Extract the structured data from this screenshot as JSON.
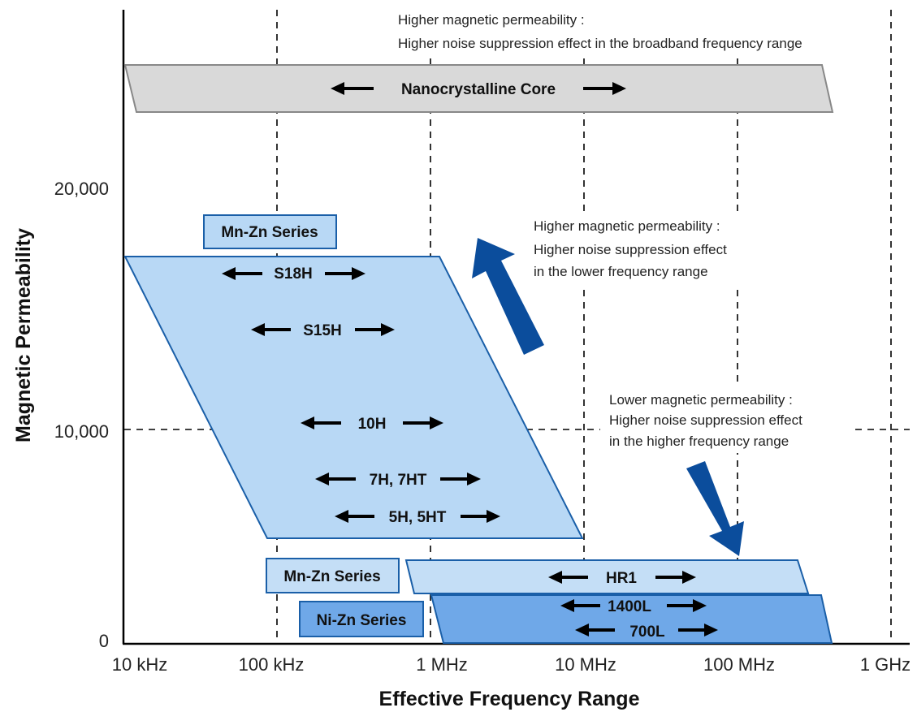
{
  "axes": {
    "x_title": "Effective Frequency Range",
    "y_title": "Magnetic Permeability",
    "x_ticks": [
      "10 kHz",
      "100 kHz",
      "1 MHz",
      "10 MHz",
      "100 MHz",
      "1 GHz"
    ],
    "y_ticks": [
      "20,000",
      "10,000",
      "0"
    ]
  },
  "nanocrystalline": {
    "label": "Nanocrystalline Core",
    "color": "#d9d9d9"
  },
  "mnzn_high": {
    "series_label": "Mn-Zn Series",
    "grades": [
      "S18H",
      "S15H",
      "10H",
      "7H, 7HT",
      "5H, 5HT"
    ],
    "color": "#b8d8f5"
  },
  "mnzn_hr": {
    "series_label": "Mn-Zn Series",
    "grade": "HR1",
    "color": "#c4def6"
  },
  "nizn": {
    "series_label": "Ni-Zn Series",
    "grades": [
      "1400L",
      "700L"
    ],
    "color": "#6fa8e8"
  },
  "notes": {
    "top": [
      "Higher magnetic permeability :",
      "Higher noise suppression effect in the broadband frequency range"
    ],
    "middle": [
      "Higher magnetic permeability :",
      "Higher noise suppression effect",
      "in the lower frequency range"
    ],
    "lower": [
      "Lower magnetic permeability :",
      "Higher noise suppression effect",
      "in the higher frequency range"
    ]
  },
  "arrow_color": "#0b4d9c"
}
